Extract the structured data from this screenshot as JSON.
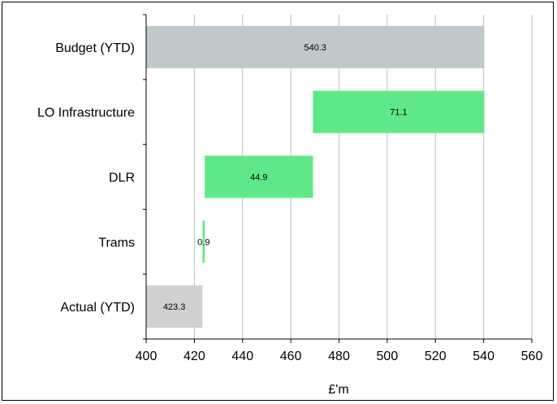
{
  "chart_data": {
    "type": "bar",
    "orientation": "horizontal",
    "waterfall": true,
    "categories": [
      "Budget (YTD)",
      "LO Infrastructure",
      "DLR",
      "Trams",
      "Actual (YTD)"
    ],
    "values": [
      540.3,
      71.1,
      44.9,
      0.9,
      423.3
    ],
    "data_labels": [
      "540.3",
      "71.1",
      "44.9",
      "0.9",
      "423.3"
    ],
    "segments": [
      {
        "category": "Budget (YTD)",
        "start": 400,
        "end": 540.3,
        "color": "#c0c8cc"
      },
      {
        "category": "LO Infrastructure",
        "start": 469.2,
        "end": 540.3,
        "color": "#5fe888"
      },
      {
        "category": "DLR",
        "start": 424.3,
        "end": 469.2,
        "color": "#5fe888"
      },
      {
        "category": "Trams",
        "start": 423.4,
        "end": 424.3,
        "color": "#5fe888"
      },
      {
        "category": "Actual (YTD)",
        "start": 400,
        "end": 423.3,
        "color": "#d0d0d0"
      }
    ],
    "xlim": [
      400,
      560
    ],
    "xticks": [
      "400",
      "420",
      "440",
      "460",
      "480",
      "500",
      "520",
      "540",
      "560"
    ],
    "xlabel": "£'m",
    "ylabel": "",
    "title": "",
    "grid": "vertical",
    "gridline_color": "#c0c0c0"
  }
}
